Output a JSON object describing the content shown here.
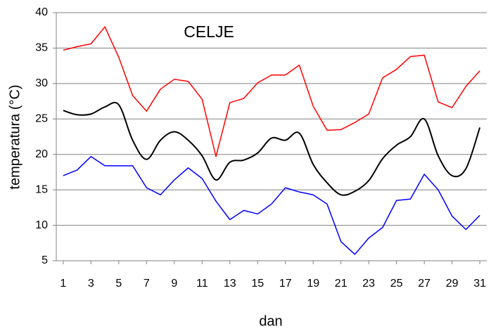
{
  "chart_data": {
    "type": "line",
    "title": "CELJE",
    "x_label": "dan",
    "y_label": "temperatura (°C)",
    "x": [
      1,
      2,
      3,
      4,
      5,
      6,
      7,
      8,
      9,
      10,
      11,
      12,
      13,
      14,
      15,
      16,
      17,
      18,
      19,
      20,
      21,
      22,
      23,
      24,
      25,
      26,
      27,
      28,
      29,
      30,
      31
    ],
    "series": [
      {
        "color": "#ff0000",
        "smooth": false,
        "values": [
          34.7,
          35.2,
          35.6,
          38.0,
          33.7,
          28.3,
          26.1,
          29.2,
          30.6,
          30.3,
          27.8,
          19.7,
          27.3,
          27.9,
          30.1,
          31.2,
          31.2,
          32.6,
          26.8,
          23.4,
          23.5,
          24.5,
          25.7,
          30.8,
          32.0,
          33.8,
          34.0,
          27.4,
          26.6,
          29.6,
          31.8
        ]
      },
      {
        "color": "#000000",
        "smooth": true,
        "values": [
          26.2,
          25.6,
          25.7,
          26.7,
          27.0,
          22.0,
          19.3,
          22.0,
          23.2,
          22.0,
          19.8,
          16.4,
          18.9,
          19.2,
          20.2,
          22.3,
          22.0,
          23.0,
          18.6,
          16.0,
          14.3,
          14.8,
          16.3,
          19.4,
          21.3,
          22.5,
          25.0,
          19.8,
          17.0,
          18.0,
          23.8
        ]
      },
      {
        "color": "#0000ff",
        "smooth": false,
        "values": [
          17.0,
          17.8,
          19.7,
          18.4,
          18.4,
          18.4,
          15.3,
          14.3,
          16.4,
          18.1,
          16.6,
          13.4,
          10.8,
          12.1,
          11.6,
          13.0,
          15.3,
          14.7,
          14.3,
          13.0,
          7.7,
          5.9,
          8.2,
          9.7,
          13.5,
          13.7,
          17.2,
          15.0,
          11.3,
          9.4,
          11.4
        ]
      }
    ],
    "xlim": [
      0.5,
      31.5
    ],
    "xticks": [
      1,
      3,
      5,
      7,
      9,
      11,
      13,
      15,
      17,
      19,
      21,
      23,
      25,
      27,
      29,
      31
    ],
    "ylim": [
      5,
      40
    ],
    "yticks": [
      5,
      10,
      15,
      20,
      25,
      30,
      35,
      40
    ],
    "grid": true
  }
}
